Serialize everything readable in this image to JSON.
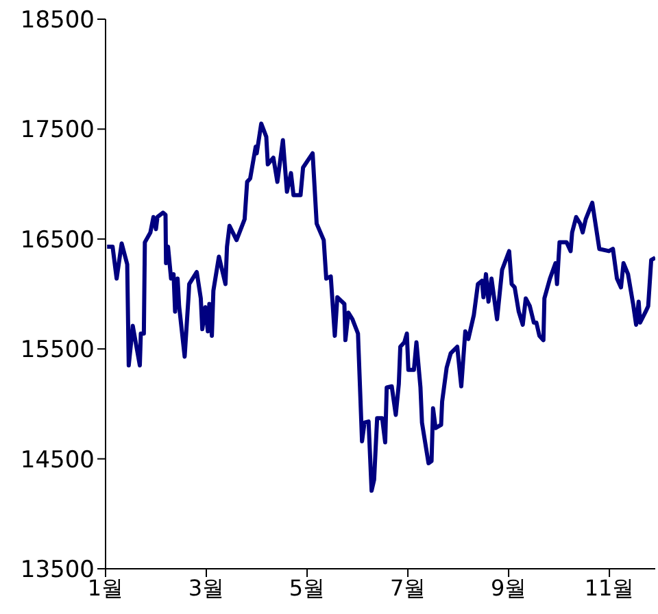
{
  "chart_data": {
    "type": "line",
    "x": [
      1.03,
      1.14,
      1.22,
      1.32,
      1.43,
      1.46,
      1.54,
      1.68,
      1.7,
      1.76,
      1.78,
      1.89,
      1.95,
      2.0,
      2.03,
      2.14,
      2.19,
      2.2,
      2.24,
      2.3,
      2.35,
      2.38,
      2.43,
      2.46,
      2.57,
      2.65,
      2.66,
      2.81,
      2.89,
      2.92,
      2.98,
      3.03,
      3.06,
      3.11,
      3.14,
      3.25,
      3.38,
      3.41,
      3.46,
      3.6,
      3.76,
      3.81,
      3.87,
      3.98,
      4.0,
      4.09,
      4.19,
      4.22,
      4.33,
      4.41,
      4.52,
      4.6,
      4.68,
      4.73,
      4.87,
      4.92,
      5.11,
      5.19,
      5.33,
      5.38,
      5.47,
      5.55,
      5.6,
      5.74,
      5.76,
      5.82,
      5.9,
      6.01,
      6.09,
      6.14,
      6.22,
      6.28,
      6.33,
      6.39,
      6.49,
      6.55,
      6.58,
      6.68,
      6.76,
      6.82,
      6.85,
      6.93,
      6.98,
      7.01,
      7.12,
      7.17,
      7.25,
      7.28,
      7.41,
      7.47,
      7.5,
      7.55,
      7.66,
      7.68,
      7.77,
      7.85,
      7.98,
      8.06,
      8.14,
      8.2,
      8.31,
      8.39,
      8.47,
      8.5,
      8.55,
      8.6,
      8.66,
      8.77,
      8.87,
      9.01,
      9.06,
      9.12,
      9.2,
      9.28,
      9.34,
      9.42,
      9.5,
      9.55,
      9.61,
      9.69,
      9.71,
      9.82,
      9.93,
      9.96,
      10.01,
      10.15,
      10.23,
      10.26,
      10.34,
      10.42,
      10.47,
      10.53,
      10.66,
      10.8,
      10.99,
      11.07,
      11.15,
      11.23,
      11.28,
      11.37,
      11.47,
      11.53,
      11.58,
      11.61,
      11.72,
      11.77,
      11.83,
      11.91
    ],
    "series": [
      {
        "color": "#000080",
        "values": [
          16430,
          16430,
          16140,
          16460,
          16270,
          15350,
          15710,
          15350,
          15640,
          15640,
          16470,
          16560,
          16700,
          16590,
          16700,
          16740,
          16720,
          16280,
          16430,
          16140,
          16180,
          15840,
          16140,
          15890,
          15430,
          16000,
          16090,
          16200,
          15960,
          15680,
          15880,
          15660,
          15910,
          15620,
          16030,
          16340,
          16090,
          16430,
          16620,
          16490,
          16680,
          17020,
          17050,
          17340,
          17280,
          17550,
          17430,
          17180,
          17240,
          17020,
          17400,
          16930,
          17100,
          16900,
          16900,
          17150,
          17280,
          16640,
          16490,
          16140,
          16160,
          15620,
          15970,
          15910,
          15580,
          15830,
          15770,
          15640,
          14660,
          14830,
          14840,
          14210,
          14310,
          14870,
          14870,
          14650,
          15150,
          15160,
          14900,
          15180,
          15520,
          15560,
          15640,
          15310,
          15310,
          15560,
          15150,
          14830,
          14460,
          14480,
          14960,
          14780,
          14810,
          15020,
          15330,
          15460,
          15520,
          15160,
          15660,
          15590,
          15810,
          16090,
          16120,
          15970,
          16180,
          15930,
          16140,
          15770,
          16220,
          16390,
          16090,
          16060,
          15840,
          15720,
          15960,
          15890,
          15740,
          15740,
          15620,
          15580,
          15960,
          16140,
          16280,
          16090,
          16470,
          16470,
          16390,
          16560,
          16700,
          16640,
          16560,
          16680,
          16830,
          16410,
          16390,
          16410,
          16140,
          16060,
          16280,
          16180,
          15910,
          15720,
          15930,
          15740,
          15840,
          15890,
          16310,
          16330
        ]
      }
    ],
    "xlim": [
      1,
      11.91
    ],
    "xticks": [
      {
        "value": 1,
        "label": "1월"
      },
      {
        "value": 3,
        "label": "3월"
      },
      {
        "value": 5,
        "label": "5월"
      },
      {
        "value": 7,
        "label": "7월"
      },
      {
        "value": 9,
        "label": "9월"
      },
      {
        "value": 11,
        "label": "11월"
      }
    ],
    "ylim": [
      13500,
      18500
    ],
    "yticks": [
      13500,
      14500,
      15500,
      16500,
      17500,
      18500
    ],
    "grid": false,
    "legend": false,
    "marker": "none",
    "line_style": "solid"
  }
}
